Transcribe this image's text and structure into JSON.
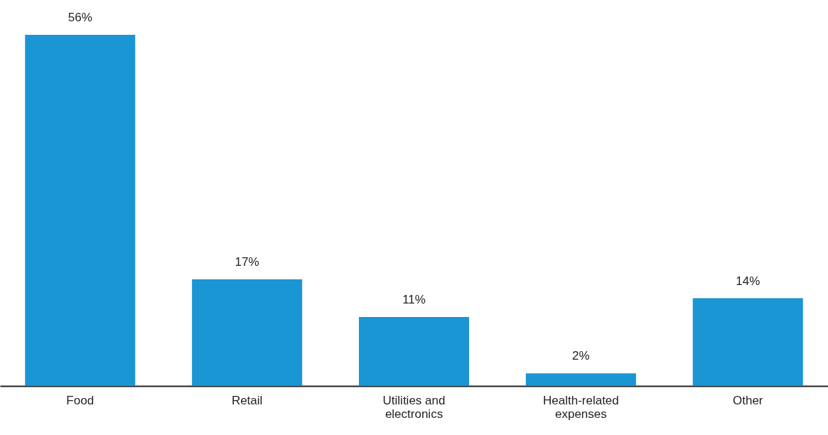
{
  "chart_data": {
    "type": "bar",
    "categories": [
      "Food",
      "Retail",
      "Utilities and electronics",
      "Health-related expenses",
      "Other"
    ],
    "values": [
      56,
      17,
      11,
      2,
      14
    ],
    "value_labels": [
      "56%",
      "17%",
      "11%",
      "2%",
      "14%"
    ],
    "color": "#1a96d4",
    "tick_labels": "x"
  }
}
